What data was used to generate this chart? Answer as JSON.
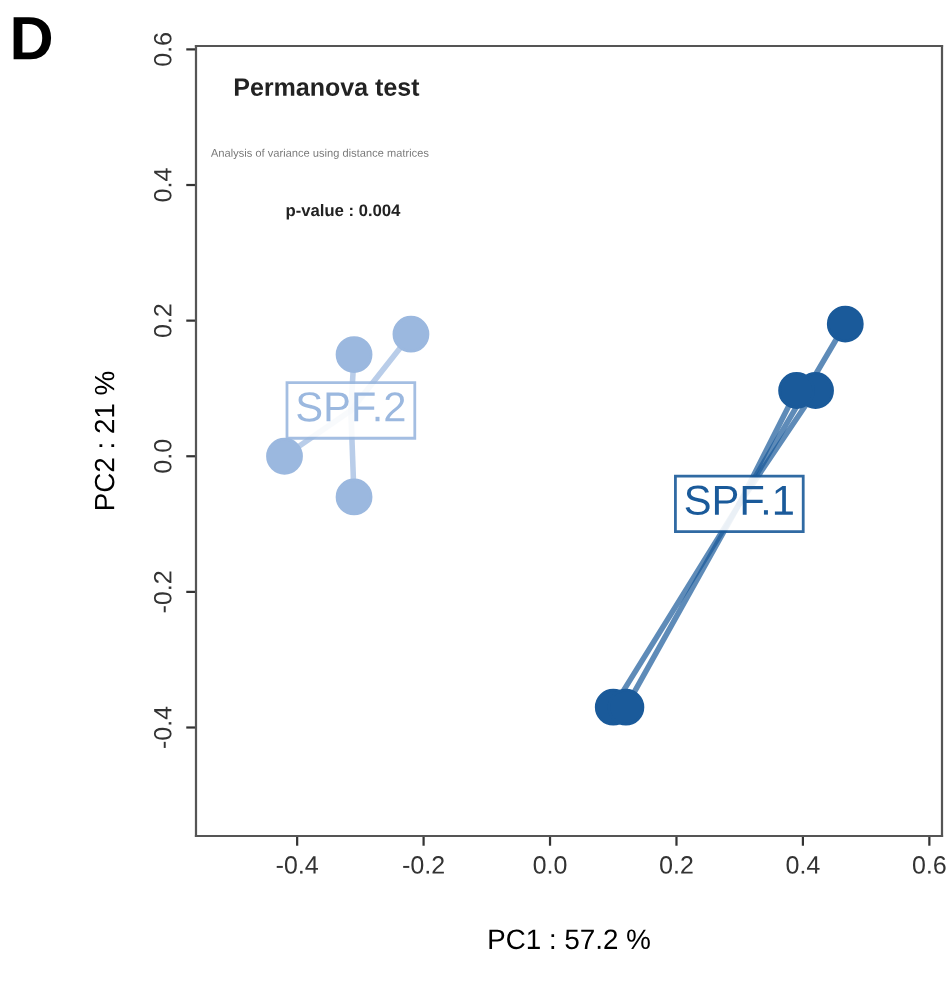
{
  "chart_data": {
    "type": "scatter",
    "xlabel": "PC1 : 57.2 %",
    "ylabel": "PC2 : 21 %",
    "annotations": [
      "D",
      "Permanova test",
      "Analysis of variance using distance matrices",
      "p-value : 0.004"
    ],
    "series": [
      {
        "name": "SPF.1",
        "color": "#1a5a9a",
        "x": [
          0.467,
          0.42,
          0.39,
          0.1,
          0.12
        ],
        "values": [
          0.195,
          0.097,
          0.097,
          -0.37,
          -0.37
        ]
      },
      {
        "name": "SPF.2",
        "color": "#9bb8df",
        "x": [
          -0.22,
          -0.31,
          -0.42,
          -0.31
        ],
        "values": [
          0.18,
          0.15,
          0.0,
          -0.06
        ]
      }
    ],
    "xlim": [
      -0.56,
      0.62
    ],
    "ylim": [
      -0.56,
      0.605
    ],
    "xticks": [
      -0.4,
      -0.2,
      {
        "value": 0,
        "label": "0.0"
      },
      0.2,
      0.4,
      0.6
    ],
    "yticks": [
      -0.4,
      -0.2,
      {
        "value": 0,
        "label": "0.0"
      },
      0.2,
      0.4,
      0.6
    ],
    "grid": false,
    "legend": false,
    "marker": "circle"
  }
}
